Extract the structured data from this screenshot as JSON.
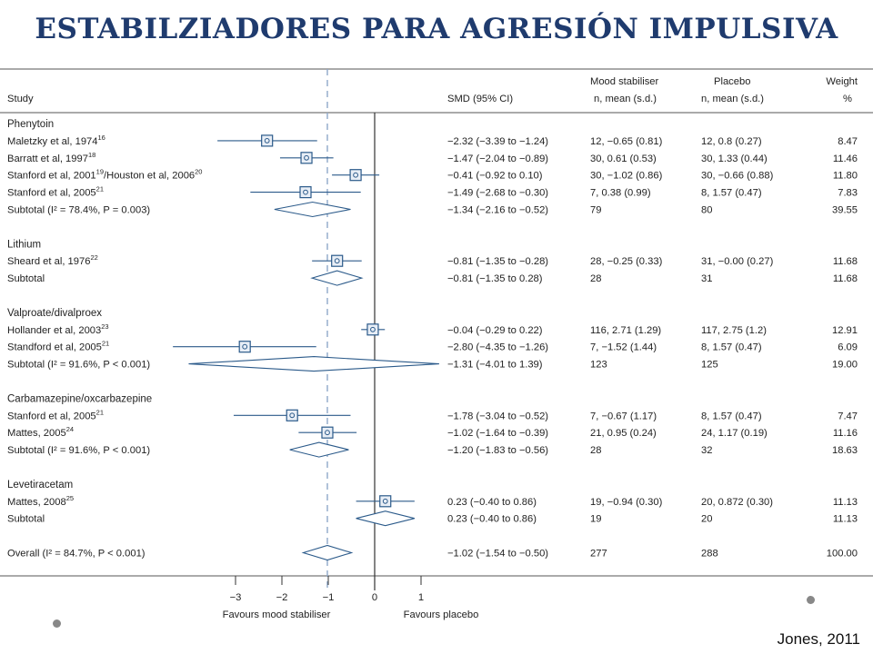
{
  "title": "ESTABILZIADORES PARA AGRESIÓN IMPULSIVA",
  "citation": "Jones, 2011",
  "headers": {
    "study": "Study",
    "smd": "SMD (95% CI)",
    "mood_line1": "Mood stabiliser",
    "mood_line2": "n, mean (s.d.)",
    "placebo_line1": "Placebo",
    "placebo_line2": "n, mean (s.d.)",
    "weight_line1": "Weight",
    "weight_line2": "%"
  },
  "colors": {
    "marker": "#2b5a8a",
    "axis": "#333333",
    "dashed": "#8fa8c8",
    "frame": "#555555"
  },
  "chart_data": {
    "type": "forest",
    "xlim": [
      -4.4,
      1.6
    ],
    "xticks": [
      {
        "value": -3,
        "label": "−3"
      },
      {
        "value": -2,
        "label": "−2"
      },
      {
        "value": -1,
        "label": "−1"
      },
      {
        "value": 0,
        "label": "0"
      },
      {
        "value": 1,
        "label": "1"
      }
    ],
    "xlabel_left": "Favours mood stabiliser",
    "xlabel_right": "Favours placebo",
    "overall_reference": -1.02,
    "rows": [
      {
        "kind": "group",
        "label": "Phenytoin"
      },
      {
        "kind": "study",
        "label": "Maletzky",
        "tail": " et al, 1974",
        "sup": "16",
        "smd": -2.32,
        "lo": -3.39,
        "hi": -1.24,
        "ci": "−2.32 (−3.39 to −1.24)",
        "mood": "12, −0.65 (0.81)",
        "placebo": "12, 0.8 (0.27)",
        "weight": "8.47"
      },
      {
        "kind": "study",
        "label": "Barratt",
        "tail": " et al, 1997",
        "sup": "18",
        "smd": -1.47,
        "lo": -2.04,
        "hi": -0.89,
        "ci": "−1.47 (−2.04 to −0.89)",
        "mood": "30, 0.61 (0.53)",
        "placebo": "30, 1.33 (0.44)",
        "weight": "11.46"
      },
      {
        "kind": "study",
        "label": "Stanford",
        "tail": " et al, 2001",
        "sup": "19",
        "tail2": "/Houston et al, 2006",
        "sup2": "20",
        "smd": -0.41,
        "lo": -0.92,
        "hi": 0.1,
        "ci": "−0.41 (−0.92 to 0.10)",
        "mood": "30, −1.02 (0.86)",
        "placebo": "30, −0.66 (0.88)",
        "weight": "11.80"
      },
      {
        "kind": "study",
        "label": "Stanford",
        "tail": " et al, 2005",
        "sup": "21",
        "smd": -1.49,
        "lo": -2.68,
        "hi": -0.3,
        "ci": "−1.49 (−2.68 to −0.30)",
        "mood": "7, 0.38 (0.99)",
        "placebo": "8, 1.57 (0.47)",
        "weight": "7.83"
      },
      {
        "kind": "subtotal",
        "label": "Subtotal (I² = 78.4%, P = 0.003)",
        "smd": -1.34,
        "lo": -2.16,
        "hi": -0.52,
        "ci": "−1.34 (−2.16 to −0.52)",
        "mood": "79",
        "placebo": "80",
        "weight": "39.55"
      },
      {
        "kind": "gap"
      },
      {
        "kind": "group",
        "label": "Lithium"
      },
      {
        "kind": "study",
        "label": "Sheard",
        "tail": " et al, 1976",
        "sup": "22",
        "smd": -0.81,
        "lo": -1.35,
        "hi": -0.28,
        "ci": "−0.81 (−1.35 to −0.28)",
        "mood": "28, −0.25 (0.33)",
        "placebo": "31, −0.00 (0.27)",
        "weight": "11.68"
      },
      {
        "kind": "subtotal",
        "label": "Subtotal",
        "smd": -0.81,
        "lo": -1.35,
        "hi": -0.28,
        "ci": "−0.81 (−1.35 to 0.28)",
        "mood": "28",
        "placebo": "31",
        "weight": "11.68"
      },
      {
        "kind": "gap"
      },
      {
        "kind": "group",
        "label": "Valproate/divalproex"
      },
      {
        "kind": "study",
        "label": "Hollander",
        "tail": " et al, 2003",
        "sup": "23",
        "smd": -0.04,
        "lo": -0.29,
        "hi": 0.22,
        "ci": "−0.04 (−0.29 to 0.22)",
        "mood": "116, 2.71 (1.29)",
        "placebo": "117, 2.75 (1.2)",
        "weight": "12.91"
      },
      {
        "kind": "study",
        "label": "Standford",
        "tail": " et al, 2005",
        "sup": "21",
        "smd": -2.8,
        "lo": -4.35,
        "hi": -1.26,
        "ci": "−2.80 (−4.35 to −1.26)",
        "mood": "7, −1.52 (1.44)",
        "placebo": "8, 1.57 (0.47)",
        "weight": "6.09"
      },
      {
        "kind": "subtotal",
        "label": "Subtotal (I² = 91.6%, P < 0.001)",
        "smd": -1.31,
        "lo": -4.01,
        "hi": 1.39,
        "ci": "−1.31 (−4.01 to 1.39)",
        "mood": "123",
        "placebo": "125",
        "weight": "19.00"
      },
      {
        "kind": "gap"
      },
      {
        "kind": "group",
        "label": "Carbamazepine/oxcarbazepine"
      },
      {
        "kind": "study",
        "label": "Stanford",
        "tail": " et al, 2005",
        "sup": "21",
        "smd": -1.78,
        "lo": -3.04,
        "hi": -0.52,
        "ci": "−1.78 (−3.04 to −0.52)",
        "mood": "7, −0.67 (1.17)",
        "placebo": "8, 1.57 (0.47)",
        "weight": "7.47"
      },
      {
        "kind": "study",
        "label": "Mattes",
        "tail": ", 2005",
        "sup": "24",
        "smd": -1.02,
        "lo": -1.64,
        "hi": -0.39,
        "ci": "−1.02 (−1.64 to −0.39)",
        "mood": "21, 0.95 (0.24)",
        "placebo": "24, 1.17 (0.19)",
        "weight": "11.16"
      },
      {
        "kind": "subtotal",
        "label": "Subtotal (I² = 91.6%, P < 0.001)",
        "smd": -1.2,
        "lo": -1.83,
        "hi": -0.56,
        "ci": "−1.20 (−1.83 to −0.56)",
        "mood": "28",
        "placebo": "32",
        "weight": "18.63"
      },
      {
        "kind": "gap"
      },
      {
        "kind": "group",
        "label": "Levetiracetam"
      },
      {
        "kind": "study",
        "label": "Mattes",
        "tail": ", 2008",
        "sup": "25",
        "smd": 0.23,
        "lo": -0.4,
        "hi": 0.86,
        "ci": "0.23 (−0.40 to 0.86)",
        "mood": "19, −0.94 (0.30)",
        "placebo": "20, 0.872 (0.30)",
        "weight": "11.13"
      },
      {
        "kind": "subtotal",
        "label": "Subtotal",
        "smd": 0.23,
        "lo": -0.4,
        "hi": 0.86,
        "ci": "0.23 (−0.40 to 0.86)",
        "mood": "19",
        "placebo": "20",
        "weight": "11.13"
      },
      {
        "kind": "gap"
      },
      {
        "kind": "subtotal",
        "label": "Overall (I² = 84.7%, P < 0.001)",
        "smd": -1.02,
        "lo": -1.54,
        "hi": -0.5,
        "ci": "−1.02 (−1.54 to −0.50)",
        "mood": "277",
        "placebo": "288",
        "weight": "100.00"
      }
    ]
  }
}
